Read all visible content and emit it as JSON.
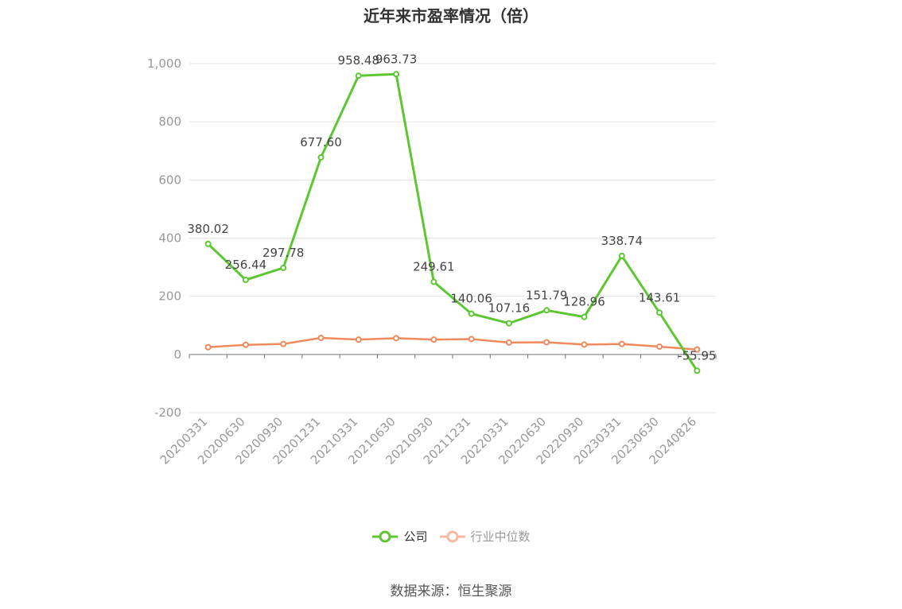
{
  "chart_data": {
    "type": "line",
    "title": "近年来市盈率情况（倍）",
    "categories": [
      "20200331",
      "20200630",
      "20200930",
      "20201231",
      "20210331",
      "20210630",
      "20210930",
      "20211231",
      "20220331",
      "20220630",
      "20220930",
      "20230331",
      "20230630",
      "20240826"
    ],
    "series": [
      {
        "name": "公司",
        "color": "#5dc732",
        "values": [
          380.02,
          256.44,
          297.78,
          677.6,
          958.48,
          963.73,
          249.61,
          140.06,
          107.16,
          151.79,
          128.96,
          338.74,
          143.61,
          -55.95
        ],
        "labels": [
          "380.02",
          "256.44",
          "297.78",
          "677.60",
          "958.48",
          "963.73",
          "249.61",
          "140.06",
          "107.16",
          "151.79",
          "128.96",
          "338.74",
          "143.61",
          "-55.95"
        ]
      },
      {
        "name": "行业中位数",
        "color": "#f0895c",
        "values": [
          25,
          33,
          36,
          57,
          51,
          56,
          51,
          53,
          41,
          42,
          34,
          36,
          27,
          17
        ]
      }
    ],
    "yticks": [
      "1,000",
      "800",
      "600",
      "400",
      "200",
      "0",
      "-200"
    ],
    "ytick_values": [
      1000,
      800,
      600,
      400,
      200,
      0,
      -200
    ],
    "ylim": [
      -200,
      1000
    ],
    "grid": true,
    "legend_position": "bottom-center"
  },
  "legend": {
    "company": "公司",
    "industry": "行业中位数"
  },
  "source": "数据来源：恒生聚源"
}
